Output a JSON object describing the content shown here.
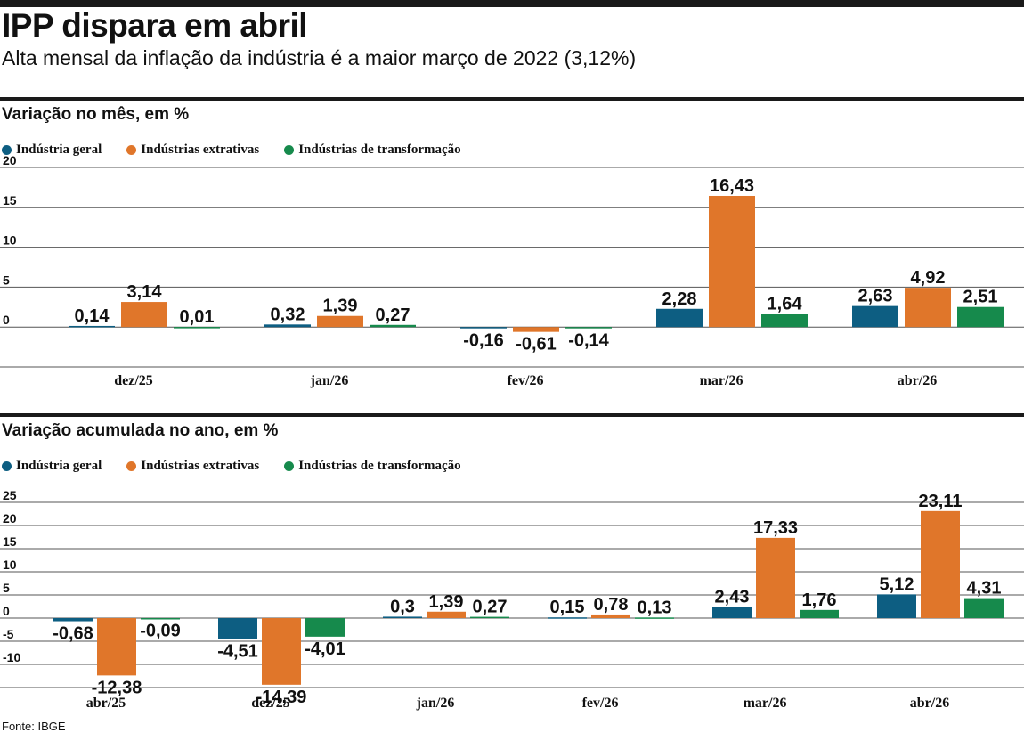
{
  "headline": "IPP dispara em abril",
  "subheadline": "Alta mensal da inflação da indústria é a maior março de 2022 (3,12%)",
  "source": "Fonte: IBGE",
  "colors": {
    "industria_geral": "#0d5e82",
    "industrias_extrativas": "#e0762a",
    "industrias_transformacao": "#168a4c",
    "grid": "#555555"
  },
  "legend": [
    {
      "label": "Indústria geral",
      "color": "#0d5e82"
    },
    {
      "label": "Indústrias extrativas",
      "color": "#e0762a"
    },
    {
      "label": "Indústrias de transformação",
      "color": "#168a4c"
    }
  ],
  "chart_data": [
    {
      "type": "bar",
      "title": "Variação no mês, em %",
      "categories": [
        "dez/25",
        "jan/26",
        "fev/26",
        "mar/26",
        "abr/26"
      ],
      "series": [
        {
          "name": "Indústria geral",
          "values": [
            0.14,
            0.32,
            -0.16,
            2.28,
            2.63
          ],
          "labels": [
            "0,14",
            "0,32",
            "-0,16",
            "2,28",
            "2,63"
          ]
        },
        {
          "name": "Indústrias extrativas",
          "values": [
            3.14,
            1.39,
            -0.61,
            16.43,
            4.92
          ],
          "labels": [
            "3,14",
            "1,39",
            "-0,61",
            "16,43",
            "4,92"
          ]
        },
        {
          "name": "Indústrias de transformação",
          "values": [
            0.01,
            0.27,
            -0.14,
            1.64,
            2.51
          ],
          "labels": [
            "0,01",
            "0,27",
            "-0,14",
            "1,64",
            "2,51"
          ]
        }
      ],
      "yticks": [
        20,
        15,
        10,
        5,
        0
      ],
      "ylim": [
        -5,
        20
      ],
      "grid": true,
      "legend_position": "top-left"
    },
    {
      "type": "bar",
      "title": "Variação acumulada no ano, em %",
      "categories": [
        "abr/25",
        "dez/25",
        "jan/26",
        "fev/26",
        "mar/26",
        "abr/26"
      ],
      "series": [
        {
          "name": "Indústria geral",
          "values": [
            -0.68,
            -4.51,
            0.3,
            0.15,
            2.43,
            5.12
          ],
          "labels": [
            "-0,68",
            "-4,51",
            "0,3",
            "0,15",
            "2,43",
            "5,12"
          ]
        },
        {
          "name": "Indústrias extrativas",
          "values": [
            -12.38,
            -14.39,
            1.39,
            0.78,
            17.33,
            23.11
          ],
          "labels": [
            "-12,38",
            "-14,39",
            "1,39",
            "0,78",
            "17,33",
            "23,11"
          ]
        },
        {
          "name": "Indústrias de transformação",
          "values": [
            -0.09,
            -4.01,
            0.27,
            0.13,
            1.76,
            4.31
          ],
          "labels": [
            "-0,09",
            "-4,01",
            "0,27",
            "0,13",
            "1,76",
            "4,31"
          ]
        }
      ],
      "yticks": [
        25,
        20,
        15,
        10,
        5,
        0,
        -5,
        -10
      ],
      "ylim": [
        -15,
        25
      ],
      "grid": true,
      "legend_position": "top-left"
    }
  ]
}
